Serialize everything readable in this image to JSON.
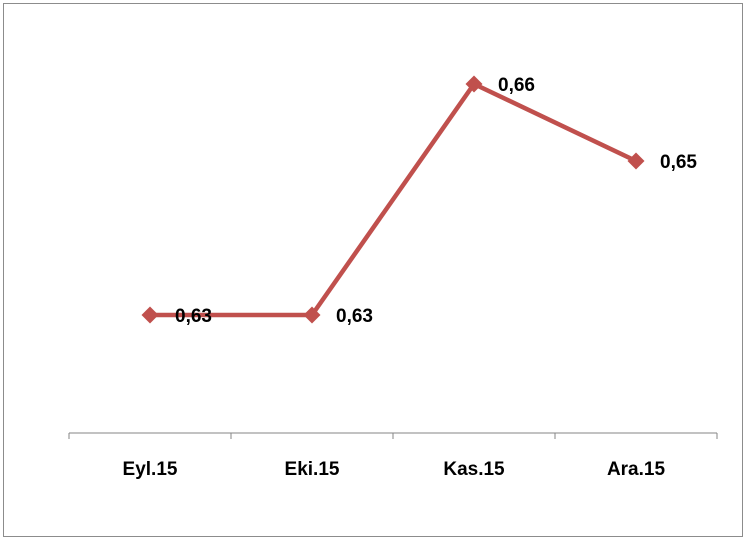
{
  "chart_data": {
    "type": "line",
    "categories": [
      "Eyl.15",
      "Eki.15",
      "Kas.15",
      "Ara.15"
    ],
    "series": [
      {
        "values": [
          0.63,
          0.63,
          0.66,
          0.65
        ],
        "labels": [
          "0,63",
          "0,63",
          "0,66",
          "0,65"
        ],
        "color": "#c0504d",
        "marker": "diamond"
      }
    ],
    "title": "",
    "xlabel": "",
    "ylabel": "",
    "ylim": [
      0.6,
      0.67
    ],
    "grid": false,
    "legend": "none"
  }
}
